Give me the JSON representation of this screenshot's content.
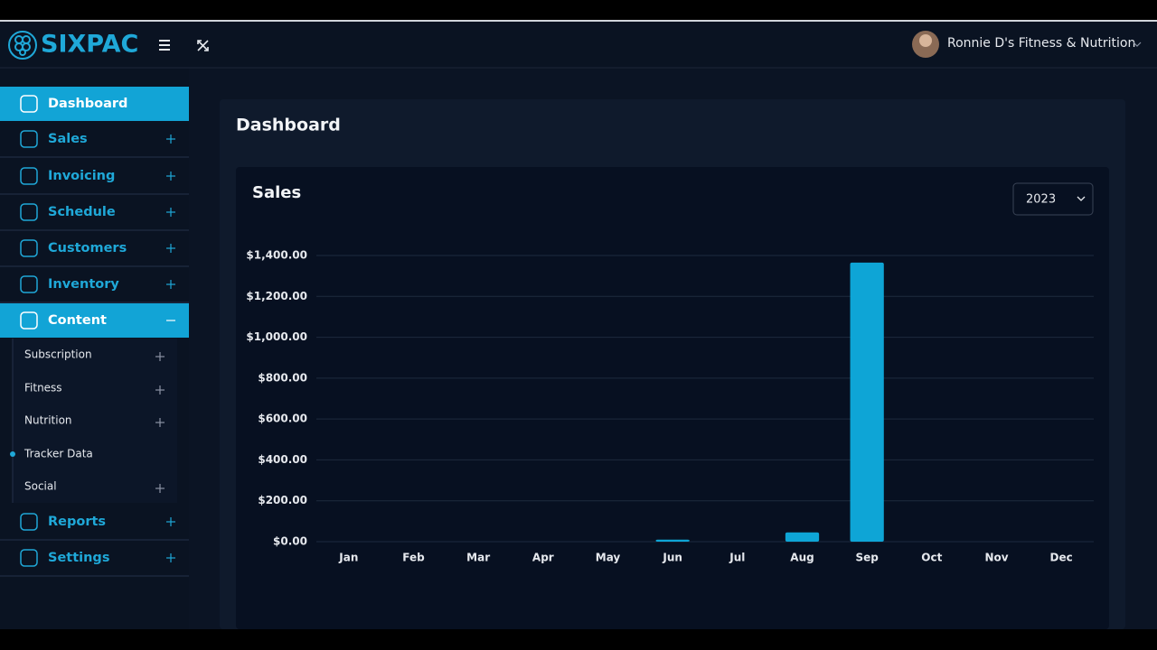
{
  "header": {
    "logo": "SIXPAC",
    "user": "Ronnie D's Fitness & Nutrition"
  },
  "sidebar": {
    "items": [
      {
        "label": "Dashboard",
        "active": true
      },
      {
        "label": "Sales"
      },
      {
        "label": "Invoicing"
      },
      {
        "label": "Schedule"
      },
      {
        "label": "Customers"
      },
      {
        "label": "Inventory"
      },
      {
        "label": "Content",
        "active": true,
        "expanded": true
      },
      {
        "label": "Reports"
      },
      {
        "label": "Settings"
      }
    ],
    "subitems": [
      {
        "label": "Subscription"
      },
      {
        "label": "Fitness"
      },
      {
        "label": "Nutrition"
      },
      {
        "label": "Tracker Data",
        "current": true
      },
      {
        "label": "Social"
      }
    ]
  },
  "page": {
    "title": "Dashboard"
  },
  "chart_data": {
    "type": "bar",
    "title": "Sales",
    "filter": "2023",
    "categories": [
      "Jan",
      "Feb",
      "Mar",
      "Apr",
      "May",
      "Jun",
      "Jul",
      "Aug",
      "Sep",
      "Oct",
      "Nov",
      "Dec"
    ],
    "values": [
      0,
      0,
      0,
      0,
      0,
      10,
      0,
      45,
      1365,
      0,
      0,
      0
    ],
    "color": "#0ea5d6",
    "ylim": [
      0,
      1400
    ],
    "yticks": [
      {
        "value": 0,
        "label": "$0.00"
      },
      {
        "value": 200,
        "label": "$200.00"
      },
      {
        "value": 400,
        "label": "$400.00"
      },
      {
        "value": 600,
        "label": "$600.00"
      },
      {
        "value": 800,
        "label": "$800.00"
      },
      {
        "value": 1000,
        "label": "$1,000.00"
      },
      {
        "value": 1200,
        "label": "$1,200.00"
      },
      {
        "value": 1400,
        "label": "$1,400.00"
      }
    ],
    "grid": true
  }
}
